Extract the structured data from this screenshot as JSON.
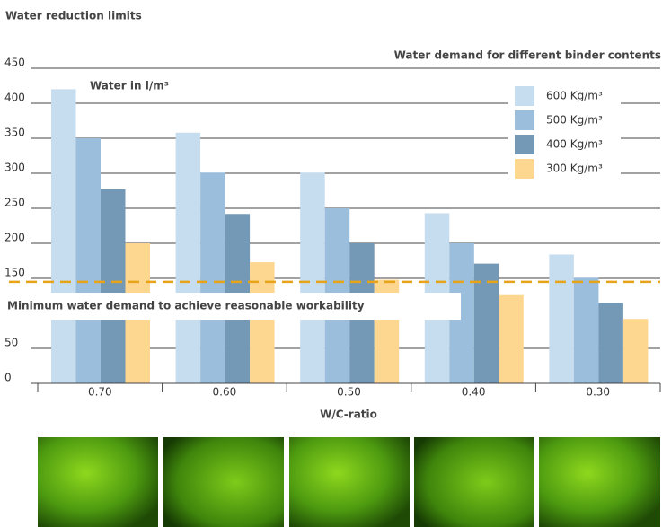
{
  "chart_data": {
    "type": "bar",
    "title": "Water reduction limits",
    "subtitle": "Water demand for different binder contents",
    "y_label": "Water in l/m³",
    "x_label": "W/C-ratio",
    "annotation": "Minimum water demand to achieve reasonable workability",
    "threshold": 145,
    "threshold_color": "#e8a419",
    "categories": [
      "0.70",
      "0.60",
      "0.50",
      "0.40",
      "0.30"
    ],
    "series": [
      {
        "name": "600 Kg/m³",
        "color": "#c6dcef",
        "values": [
          420,
          358,
          301,
          243,
          184
        ]
      },
      {
        "name": "500 Kg/m³",
        "color": "#9bbedc",
        "values": [
          350,
          301,
          250,
          200,
          151
        ]
      },
      {
        "name": "400 Kg/m³",
        "color": "#7399b6",
        "values": [
          277,
          242,
          200,
          171,
          115
        ]
      },
      {
        "name": "300 Kg/m³",
        "color": "#fdd78f",
        "values": [
          200,
          173,
          148,
          126,
          92
        ]
      }
    ],
    "ylim": [
      0,
      450
    ],
    "yticks": [
      0,
      50,
      150,
      200,
      250,
      300,
      350,
      400,
      450
    ],
    "grid": true
  }
}
